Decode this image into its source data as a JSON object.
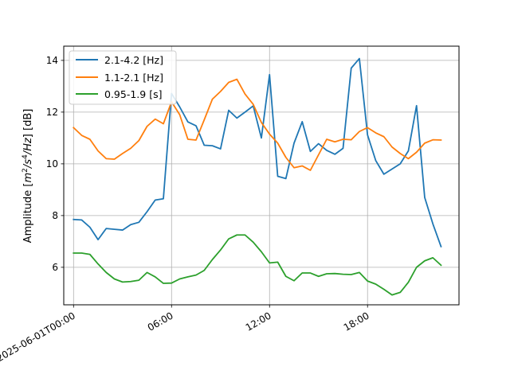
{
  "chart_data": {
    "type": "line",
    "title": "",
    "xlabel": "",
    "ylabel": "Amplitude [m²/s⁴/Hz] [dB]",
    "ylabel_parts": {
      "prefix": "Amplitude [",
      "m": "m",
      "m_exp": "2",
      "slash1": "/",
      "s": "s",
      "s_exp": "4",
      "hz": "/Hz",
      "suffix": "] [dB]"
    },
    "xlim_hours": [
      -0.6,
      23.6
    ],
    "ylim": [
      4.55,
      14.55
    ],
    "grid": true,
    "legend_position": "upper-left",
    "x_ticks": [
      {
        "hour": 0,
        "label": "2025-06-01T00:00"
      },
      {
        "hour": 6,
        "label": "06:00"
      },
      {
        "hour": 12,
        "label": "12:00"
      },
      {
        "hour": 18,
        "label": "18:00"
      }
    ],
    "y_ticks": [
      {
        "value": 6,
        "label": "6"
      },
      {
        "value": 8,
        "label": "8"
      },
      {
        "value": 10,
        "label": "10"
      },
      {
        "value": 12,
        "label": "12"
      },
      {
        "value": 14,
        "label": "14"
      }
    ],
    "x_hours": [
      0,
      0.5,
      1,
      1.5,
      2,
      2.5,
      3,
      3.5,
      4,
      4.5,
      5,
      5.5,
      6,
      6.5,
      7,
      7.5,
      8,
      8.5,
      9,
      9.5,
      10,
      10.5,
      11,
      11.5,
      12,
      12.5,
      13,
      13.5,
      14,
      14.5,
      15,
      15.5,
      16,
      16.5,
      17,
      17.5,
      18,
      18.5,
      19,
      19.5,
      20,
      20.5,
      21,
      21.5,
      22,
      22.5
    ],
    "series": [
      {
        "name": "2.1-4.2 [Hz]",
        "color": "#1f77b4",
        "values": [
          7.85,
          7.83,
          7.55,
          7.07,
          7.5,
          7.47,
          7.44,
          7.65,
          7.74,
          8.15,
          8.6,
          8.65,
          12.72,
          12.2,
          11.62,
          11.47,
          10.72,
          10.7,
          10.58,
          12.07,
          11.77,
          12.0,
          12.24,
          11.0,
          13.45,
          9.52,
          9.43,
          10.8,
          11.63,
          10.48,
          10.78,
          10.52,
          10.37,
          10.6,
          13.7,
          14.07,
          11.12,
          10.13,
          9.6,
          9.8,
          10.0,
          10.5,
          12.25,
          8.7,
          7.68,
          6.8
        ]
      },
      {
        "name": "1.1-2.1 [Hz]",
        "color": "#ff7f0e",
        "values": [
          11.4,
          11.1,
          10.95,
          10.5,
          10.2,
          10.18,
          10.4,
          10.6,
          10.9,
          11.45,
          11.73,
          11.55,
          12.4,
          11.9,
          10.95,
          10.92,
          11.7,
          12.5,
          12.8,
          13.15,
          13.27,
          12.7,
          12.3,
          11.6,
          11.15,
          10.8,
          10.25,
          9.85,
          9.92,
          9.75,
          10.35,
          10.95,
          10.85,
          10.95,
          10.93,
          11.25,
          11.4,
          11.2,
          11.05,
          10.65,
          10.4,
          10.2,
          10.45,
          10.8,
          10.93,
          10.92
        ]
      },
      {
        "name": "0.95-1.9 [s]",
        "color": "#2ca02c",
        "values": [
          6.55,
          6.55,
          6.5,
          6.13,
          5.8,
          5.55,
          5.43,
          5.45,
          5.5,
          5.8,
          5.63,
          5.38,
          5.39,
          5.55,
          5.63,
          5.7,
          5.88,
          6.3,
          6.67,
          7.1,
          7.25,
          7.25,
          6.97,
          6.6,
          6.17,
          6.2,
          5.65,
          5.48,
          5.78,
          5.78,
          5.65,
          5.75,
          5.76,
          5.73,
          5.72,
          5.8,
          5.47,
          5.35,
          5.15,
          4.93,
          5.03,
          5.42,
          6.0,
          6.25,
          6.37,
          6.08
        ]
      }
    ]
  }
}
